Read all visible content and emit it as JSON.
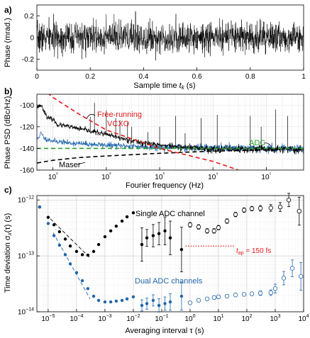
{
  "chart_data": [
    {
      "panel_label": "a)",
      "type": "line",
      "xlabel_text": "Sample time ",
      "xlabel_var": "t",
      "xlabel_sub": "k",
      "xlabel_unit": " (s)",
      "ylabel": "Phase (mrad.)",
      "xlim": [
        0,
        1
      ],
      "ylim": [
        -0.3,
        0.3
      ],
      "xticks": [
        0,
        0.2,
        0.4,
        0.6,
        0.8,
        1
      ],
      "xtick_labels": [
        "0",
        "0.2",
        "0.4",
        "0.6",
        "0.8",
        "1"
      ],
      "yticks": [
        -0.2,
        0,
        0.2
      ],
      "ytick_labels": [
        "-0.2",
        "0",
        "0.2"
      ],
      "series": [
        {
          "color": "#000000",
          "style": "dense noise",
          "rms": 0.07,
          "peak": 0.24,
          "peak_x": 0.37
        }
      ]
    },
    {
      "panel_label": "b)",
      "type": "line",
      "xlabel": "Fourier frequency (Hz)",
      "ylabel": "Phase PSD (dBc/Hz)",
      "x_scale": "log",
      "xlim": [
        5,
        500000
      ],
      "ylim": [
        -160,
        -90
      ],
      "xticks": [
        10,
        100,
        1000,
        10000,
        100000
      ],
      "xtick_labels": [
        "10¹",
        "10²",
        "10³",
        "10⁴",
        "10⁵"
      ],
      "yticks": [
        -100,
        -120,
        -140,
        -160
      ],
      "ytick_labels": [
        "-100",
        "-120",
        "-140",
        "-160"
      ],
      "grid": true,
      "series": [
        {
          "name": "Free-running VCXO",
          "name_lines": [
            "Free-running",
            "VCXO"
          ],
          "color": "#e41a1c",
          "style": "dashed",
          "x": [
            5,
            10,
            30,
            100,
            1000,
            10000,
            30000
          ],
          "y": [
            -80,
            -93,
            -108,
            -123,
            -140,
            -152,
            -160
          ]
        },
        {
          "name": "ADC",
          "color": "#2ca02c",
          "style": "dashed",
          "x": [
            5,
            500000
          ],
          "y": [
            -140,
            -140
          ]
        },
        {
          "name": "Maser",
          "color": "#000000",
          "style": "dashed",
          "x": [
            5,
            10,
            30,
            100,
            1000,
            10000,
            100000
          ],
          "y": [
            -153.5,
            -151,
            -148.5,
            -147,
            -144.5,
            -142.5,
            -141.5
          ]
        },
        {
          "color": "#000000",
          "style": "solid",
          "x": [
            5,
            6,
            8,
            10,
            12,
            20,
            40,
            80,
            200,
            500,
            1000,
            3000,
            10000,
            100000,
            500000
          ],
          "y": [
            -102,
            -100,
            -112,
            -113,
            -118,
            -120,
            -123,
            -126,
            -131,
            -135,
            -137,
            -139,
            -140.5,
            -141,
            -141
          ],
          "spikes_hz": [
            50,
            60,
            100,
            150,
            180,
            250,
            300,
            600,
            1000,
            2000,
            3000,
            6000,
            12000,
            50000,
            80000,
            150000,
            250000
          ],
          "spikes_db": [
            -111,
            -98,
            -105,
            -112,
            -114,
            -116,
            -120,
            -125,
            -120,
            -110,
            -126,
            -112,
            -109,
            -110,
            -120,
            -104,
            -110
          ]
        },
        {
          "color": "#2166ac",
          "style": "solid",
          "x": [
            5,
            6,
            7,
            10,
            20,
            100,
            1000,
            100000,
            500000
          ],
          "y": [
            -132,
            -126,
            -131,
            -133,
            -135,
            -137,
            -139,
            -140,
            -140
          ]
        }
      ]
    },
    {
      "panel_label": "c)",
      "type": "scatter",
      "xlabel": "Averaging interval τ (s)",
      "ylabel": "Time deviation σ",
      "ylabel_sub": "x",
      "ylabel_rest": "(τ) (s)",
      "x_scale": "log",
      "y_scale": "log",
      "xlim": [
        4e-06,
        10000
      ],
      "ylim": [
        1e-14,
        1.2e-12
      ],
      "xtick_exps": [
        -5,
        -4,
        -3,
        -2,
        -1,
        0,
        1,
        2,
        3,
        4
      ],
      "ytick_exps": [
        -14,
        -13,
        -12
      ],
      "grid": true,
      "annotations": [
        {
          "text": "Single ADC channel",
          "color": "#000000"
        },
        {
          "text": "Dual ADC channels",
          "color": "#2166ac"
        },
        {
          "text_var": "t",
          "text_sub": "ap",
          "text_rest": " = 150 fs",
          "color": "#e41a1c"
        }
      ],
      "reference_line": {
        "y": 1.5e-13,
        "x": [
          0.7,
          40
        ],
        "color": "#e41a1c",
        "style": "dotted"
      },
      "series": [
        {
          "name": "Single ADC channel",
          "color": "#000000",
          "filled": {
            "x": [
              5e-06,
              1e-05,
              1.6e-05,
              2.5e-05,
              4e-05,
              6e-05,
              0.0001,
              0.00016,
              0.00025,
              0.0004,
              0.0006,
              0.001,
              0.0016,
              0.0025,
              0.004,
              0.006,
              0.01,
              0.02,
              0.03,
              0.05,
              0.08,
              0.13,
              0.2,
              0.5
            ],
            "y": [
              7.5e-13,
              4.9e-13,
              3.6e-13,
              2.7e-13,
              2e-13,
              1.5e-13,
              1.2e-13,
              1.05e-13,
              1.03e-13,
              1.2e-13,
              1.6e-13,
              2.2e-13,
              2.8e-13,
              3.4e-13,
              4.2e-13,
              5e-13,
              5.9e-13,
              1.6e-13,
              2.1e-13,
              2.3e-13,
              2.5e-13,
              2.8e-13,
              2.1e-13,
              1.3e-13
            ],
            "err": [
              0,
              0,
              0,
              0,
              0,
              0,
              0,
              0,
              0,
              0,
              0,
              0,
              0,
              0,
              0,
              0,
              0,
              0.3,
              0.15,
              0.2,
              0.2,
              0.25,
              0.3,
              0.4
            ]
          },
          "open": {
            "x": [
              1,
              2,
              4,
              7,
              10,
              20,
              40,
              80,
              150,
              300,
              700,
              1500,
              3000,
              7000
            ],
            "y": [
              3.6e-13,
              3.3e-13,
              2.8e-13,
              2.8e-13,
              3.2e-13,
              4.2e-13,
              5.5e-13,
              6.6e-13,
              7e-13,
              7.1e-13,
              7.2e-13,
              7.5e-13,
              1e-12,
              6.3e-13
            ],
            "err": [
              0.04,
              0.04,
              0.04,
              0.04,
              0.04,
              0.04,
              0.04,
              0.04,
              0.04,
              0.05,
              0.06,
              0.08,
              0.12,
              0.25
            ]
          }
        },
        {
          "name": "Dual ADC channels",
          "color": "#2166ac",
          "filled": {
            "x": [
              5e-06,
              1e-05,
              1.6e-05,
              2.5e-05,
              4e-05,
              6e-05,
              0.0001,
              0.00016,
              0.00025,
              0.0004,
              0.0006,
              0.001,
              0.0016,
              0.0025,
              0.004,
              0.006,
              0.01,
              0.02,
              0.03,
              0.05,
              0.08,
              0.13,
              0.2,
              0.5
            ],
            "y": [
              7.5e-13,
              3.8e-13,
              2.3e-13,
              1.55e-13,
              1.05e-13,
              7.2e-14,
              5e-14,
              3.6e-14,
              2.6e-14,
              1.9e-14,
              1.6e-14,
              1.5e-14,
              1.5e-14,
              1.55e-14,
              1.6e-14,
              1.7e-14,
              1.85e-14,
              1.3e-14,
              1.4e-14,
              1.6e-14,
              1.3e-14,
              1.4e-14,
              1.5e-14,
              1.9e-14
            ],
            "err": [
              0,
              0,
              0,
              0,
              0,
              0,
              0,
              0,
              0,
              0,
              0,
              0,
              0,
              0,
              0,
              0,
              0,
              0.1,
              0.1,
              0.1,
              0.12,
              0.12,
              0.15,
              0.25
            ]
          },
          "open": {
            "x": [
              1,
              2,
              4,
              7,
              10,
              20,
              40,
              80,
              150,
              300,
              700,
              1000,
              2000,
              4000,
              8000
            ],
            "y": [
              1.45e-14,
              1.6e-14,
              1.7e-14,
              1.8e-14,
              1.85e-14,
              1.9e-14,
              2e-14,
              2.05e-14,
              2.1e-14,
              2.15e-14,
              2.2e-14,
              2.6e-14,
              4e-14,
              6e-14,
              4.3e-14
            ],
            "err": [
              0.03,
              0.03,
              0.03,
              0.03,
              0.03,
              0.03,
              0.03,
              0.03,
              0.03,
              0.04,
              0.05,
              0.08,
              0.12,
              0.15,
              0.25
            ]
          }
        }
      ],
      "fits": [
        {
          "color": "#000000",
          "style": "dashed",
          "x": [
            1.2e-05,
            0.00028
          ],
          "y": [
            4.6e-13,
            9.5e-14
          ]
        },
        {
          "color": "#2166ac",
          "style": "dashed",
          "x": [
            1.5e-05,
            0.0003
          ],
          "y": [
            2.6e-13,
            1.7e-14
          ]
        }
      ]
    }
  ]
}
